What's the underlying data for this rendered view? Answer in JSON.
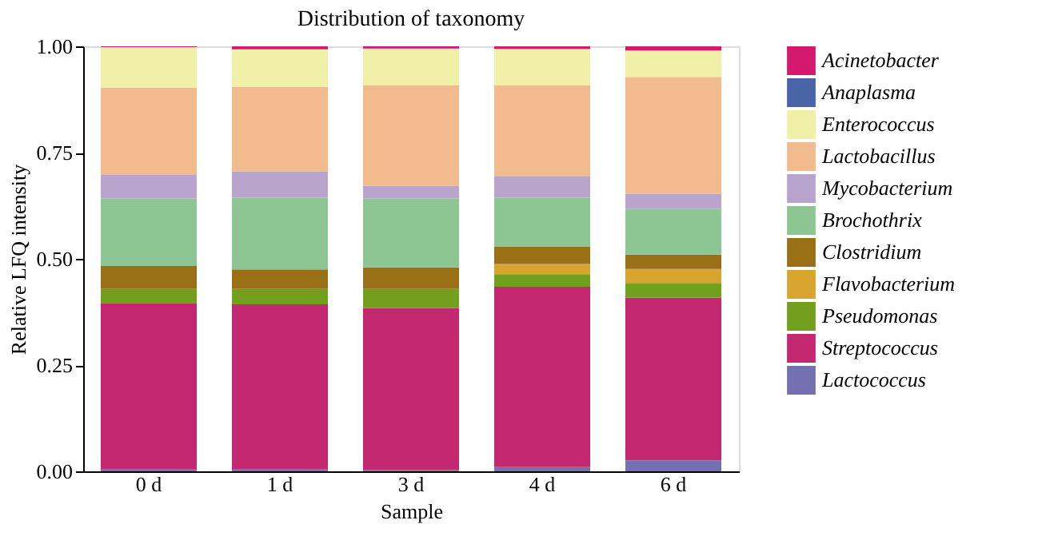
{
  "chart_data": {
    "type": "bar",
    "stacked": true,
    "title": "Distribution of taxonomy",
    "xlabel": "Sample",
    "ylabel": "Relative LFQ intensity",
    "categories": [
      "0 d",
      "1 d",
      "3 d",
      "4 d",
      "6 d"
    ],
    "ylim": [
      0,
      1
    ],
    "yticks": [
      {
        "value": 0,
        "label": "0.00"
      },
      {
        "value": 0.25,
        "label": "0.25"
      },
      {
        "value": 0.5,
        "label": "0.50"
      },
      {
        "value": 0.75,
        "label": "0.75"
      },
      {
        "value": 1,
        "label": "1.00"
      }
    ],
    "grid": false,
    "legend": "right",
    "series": [
      {
        "name": "Lactococcus",
        "color": "#7570b0",
        "values": [
          0.004,
          0.004,
          0.003,
          0.01,
          0.026
        ]
      },
      {
        "name": "Streptococcus",
        "color": "#c42870",
        "values": [
          0.392,
          0.389,
          0.381,
          0.424,
          0.383
        ]
      },
      {
        "name": "Pseudomonas",
        "color": "#729f1e",
        "values": [
          0.033,
          0.036,
          0.045,
          0.03,
          0.034
        ]
      },
      {
        "name": "Flavobacterium",
        "color": "#d8a52e",
        "values": [
          0,
          0,
          0,
          0.024,
          0.033
        ]
      },
      {
        "name": "Clostridium",
        "color": "#9a7016",
        "values": [
          0.054,
          0.046,
          0.051,
          0.041,
          0.034
        ]
      },
      {
        "name": "Brochothrix",
        "color": "#8ec693",
        "values": [
          0.159,
          0.169,
          0.162,
          0.115,
          0.107
        ]
      },
      {
        "name": "Mycobacterium",
        "color": "#b8a4cc",
        "values": [
          0.057,
          0.062,
          0.03,
          0.051,
          0.036
        ]
      },
      {
        "name": "Lactobacillus",
        "color": "#f2bb8e",
        "values": [
          0.204,
          0.199,
          0.236,
          0.213,
          0.275
        ]
      },
      {
        "name": "Enterococcus",
        "color": "#f0f0a8",
        "values": [
          0.095,
          0.088,
          0.087,
          0.086,
          0.062
        ]
      },
      {
        "name": "Anaplasma",
        "color": "#4a64a8",
        "values": [
          0,
          0,
          0,
          0,
          0
        ]
      },
      {
        "name": "Acinetobacter",
        "color": "#d4196e",
        "values": [
          0.002,
          0.007,
          0.005,
          0.006,
          0.01
        ]
      }
    ]
  }
}
